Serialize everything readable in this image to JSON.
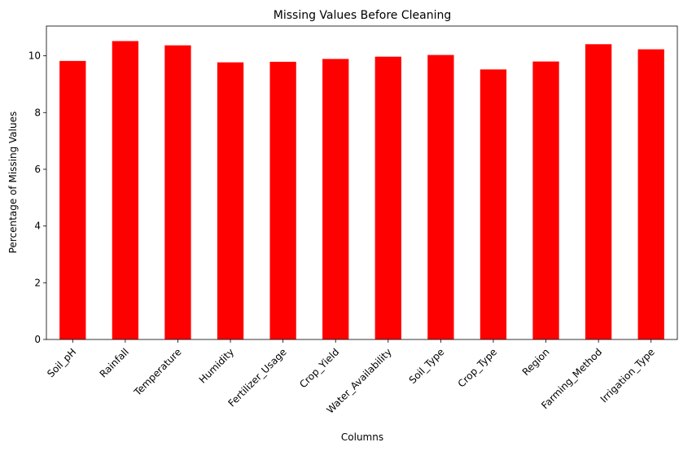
{
  "chart_data": {
    "type": "bar",
    "title": "Missing Values Before Cleaning",
    "xlabel": "Columns",
    "ylabel": "Percentage of Missing Values",
    "categories": [
      "Soil_pH",
      "Rainfall",
      "Temperature",
      "Humidity",
      "Fertilizer_Usage",
      "Crop_Yield",
      "Water_Availability",
      "Soil_Type",
      "Crop_Type",
      "Region",
      "Farming_Method",
      "Irrigation_Type"
    ],
    "values": [
      9.82,
      10.52,
      10.37,
      9.77,
      9.79,
      9.89,
      9.97,
      10.03,
      9.52,
      9.8,
      10.41,
      10.23
    ],
    "yticks": [
      0,
      2,
      4,
      6,
      8,
      10
    ],
    "ylim": [
      0,
      11.05
    ],
    "grid": false,
    "legend": false,
    "bar_color": "#ff0000"
  }
}
